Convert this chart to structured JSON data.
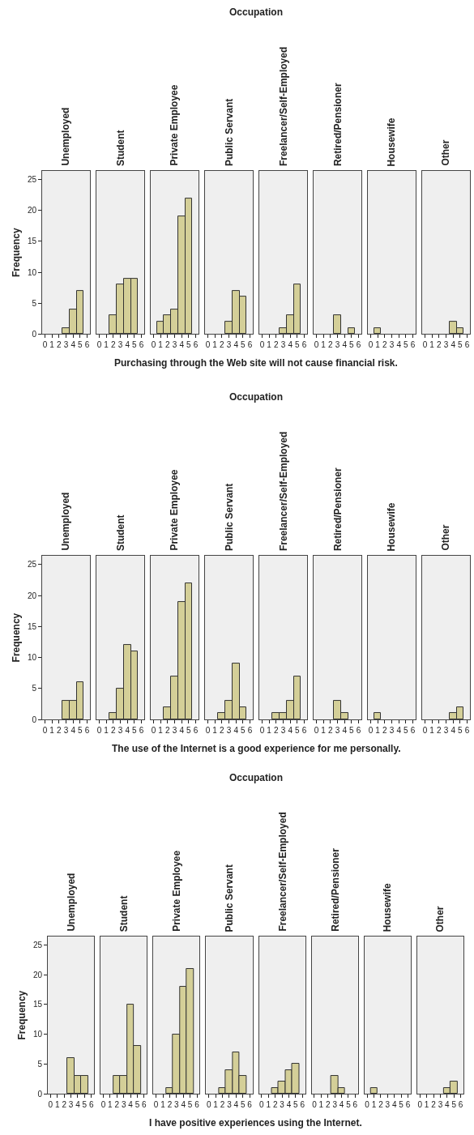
{
  "chart_data": [
    {
      "type": "bar",
      "title": "Unemployed",
      "annotations": [
        "Occupation"
      ],
      "xlabel": "Purchasing through the Web site will not cause financial risk.",
      "ylabel": "Frequency",
      "x": [
        3,
        4,
        5
      ],
      "values": [
        1,
        4,
        7
      ],
      "color": "#d4cf98",
      "xlim": [
        -0.4,
        6.4
      ],
      "xticks": [
        0,
        1,
        2,
        3,
        4,
        5,
        6
      ],
      "ylim": [
        0,
        26.4
      ],
      "yticks": [
        0,
        5,
        10,
        15,
        20,
        25
      ]
    },
    {
      "type": "bar",
      "title": "Student",
      "x": [
        2,
        3,
        4,
        5
      ],
      "values": [
        3,
        8,
        9,
        9
      ],
      "color": "#d4cf98",
      "xlim": [
        -0.4,
        6.4
      ],
      "xticks": [
        0,
        1,
        2,
        3,
        4,
        5,
        6
      ],
      "ylim": [
        0,
        26.4
      ],
      "tick_labels": "x"
    },
    {
      "type": "bar",
      "title": "Private Employee",
      "x": [
        1,
        2,
        3,
        4,
        5
      ],
      "values": [
        2,
        3,
        4,
        19,
        22
      ],
      "color": "#d4cf98",
      "xlim": [
        -0.4,
        6.4
      ],
      "xticks": [
        0,
        1,
        2,
        3,
        4,
        5,
        6
      ],
      "ylim": [
        0,
        26.4
      ],
      "tick_labels": "x"
    },
    {
      "type": "bar",
      "title": "Public Servant",
      "x": [
        3,
        4,
        5
      ],
      "values": [
        2,
        7,
        6
      ],
      "color": "#d4cf98",
      "xlim": [
        -0.4,
        6.4
      ],
      "xticks": [
        0,
        1,
        2,
        3,
        4,
        5,
        6
      ],
      "ylim": [
        0,
        26.4
      ],
      "tick_labels": "x"
    },
    {
      "type": "bar",
      "title": "Freelancer/Self-Employed",
      "x": [
        3,
        4,
        5
      ],
      "values": [
        1,
        3,
        8
      ],
      "color": "#d4cf98",
      "xlim": [
        -0.4,
        6.4
      ],
      "xticks": [
        0,
        1,
        2,
        3,
        4,
        5,
        6
      ],
      "ylim": [
        0,
        26.4
      ],
      "tick_labels": "x"
    },
    {
      "type": "bar",
      "title": "Retired/Pensioner",
      "x": [
        3,
        5
      ],
      "values": [
        3,
        1
      ],
      "color": "#d4cf98",
      "xlim": [
        -0.4,
        6.4
      ],
      "xticks": [
        0,
        1,
        2,
        3,
        4,
        5,
        6
      ],
      "ylim": [
        0,
        26.4
      ],
      "tick_labels": "x"
    },
    {
      "type": "bar",
      "title": "Housewife",
      "x": [
        1
      ],
      "values": [
        1
      ],
      "color": "#d4cf98",
      "xlim": [
        -0.4,
        6.4
      ],
      "xticks": [
        0,
        1,
        2,
        3,
        4,
        5,
        6
      ],
      "ylim": [
        0,
        26.4
      ],
      "tick_labels": "x"
    },
    {
      "type": "bar",
      "title": "Other",
      "x": [
        4,
        5
      ],
      "values": [
        2,
        1
      ],
      "color": "#d4cf98",
      "xlim": [
        -0.4,
        6.4
      ],
      "xticks": [
        0,
        1,
        2,
        3,
        4,
        5,
        6
      ],
      "ylim": [
        0,
        26.4
      ],
      "tick_labels": "x"
    },
    {
      "type": "bar",
      "title": "Unemployed",
      "annotations": [
        "Occupation"
      ],
      "xlabel": "The use of the Internet is a good experience for me personally.",
      "ylabel": "Frequency",
      "x": [
        3,
        4,
        5
      ],
      "values": [
        3,
        3,
        6
      ],
      "color": "#d4cf98",
      "xlim": [
        -0.4,
        6.4
      ],
      "xticks": [
        0,
        1,
        2,
        3,
        4,
        5,
        6
      ],
      "ylim": [
        0,
        26.4
      ],
      "yticks": [
        0,
        5,
        10,
        15,
        20,
        25
      ]
    },
    {
      "type": "bar",
      "title": "Student",
      "x": [
        2,
        3,
        4,
        5
      ],
      "values": [
        1,
        5,
        12,
        11
      ],
      "color": "#d4cf98",
      "xlim": [
        -0.4,
        6.4
      ],
      "xticks": [
        0,
        1,
        2,
        3,
        4,
        5,
        6
      ],
      "ylim": [
        0,
        26.4
      ],
      "tick_labels": "x"
    },
    {
      "type": "bar",
      "title": "Private Employee",
      "x": [
        2,
        3,
        4,
        5
      ],
      "values": [
        2,
        7,
        19,
        22
      ],
      "color": "#d4cf98",
      "xlim": [
        -0.4,
        6.4
      ],
      "xticks": [
        0,
        1,
        2,
        3,
        4,
        5,
        6
      ],
      "ylim": [
        0,
        26.4
      ],
      "tick_labels": "x"
    },
    {
      "type": "bar",
      "title": "Public Servant",
      "x": [
        2,
        3,
        4,
        5
      ],
      "values": [
        1,
        3,
        9,
        2
      ],
      "color": "#d4cf98",
      "xlim": [
        -0.4,
        6.4
      ],
      "xticks": [
        0,
        1,
        2,
        3,
        4,
        5,
        6
      ],
      "ylim": [
        0,
        26.4
      ],
      "tick_labels": "x"
    },
    {
      "type": "bar",
      "title": "Freelancer/Self-Employed",
      "x": [
        2,
        3,
        4,
        5
      ],
      "values": [
        1,
        1,
        3,
        7
      ],
      "color": "#d4cf98",
      "xlim": [
        -0.4,
        6.4
      ],
      "xticks": [
        0,
        1,
        2,
        3,
        4,
        5,
        6
      ],
      "ylim": [
        0,
        26.4
      ],
      "tick_labels": "x"
    },
    {
      "type": "bar",
      "title": "Retired/Pensioner",
      "x": [
        3,
        4
      ],
      "values": [
        3,
        1
      ],
      "color": "#d4cf98",
      "xlim": [
        -0.4,
        6.4
      ],
      "xticks": [
        0,
        1,
        2,
        3,
        4,
        5,
        6
      ],
      "ylim": [
        0,
        26.4
      ],
      "tick_labels": "x"
    },
    {
      "type": "bar",
      "title": "Housewife",
      "x": [
        1
      ],
      "values": [
        1
      ],
      "color": "#d4cf98",
      "xlim": [
        -0.4,
        6.4
      ],
      "xticks": [
        0,
        1,
        2,
        3,
        4,
        5,
        6
      ],
      "ylim": [
        0,
        26.4
      ],
      "tick_labels": "x"
    },
    {
      "type": "bar",
      "title": "Other",
      "x": [
        4,
        5
      ],
      "values": [
        1,
        2
      ],
      "color": "#d4cf98",
      "xlim": [
        -0.4,
        6.4
      ],
      "xticks": [
        0,
        1,
        2,
        3,
        4,
        5,
        6
      ],
      "ylim": [
        0,
        26.4
      ],
      "tick_labels": "x"
    },
    {
      "type": "bar",
      "title": "Unemployed",
      "annotations": [
        "Occupation"
      ],
      "xlabel": "I have positive experiences using the Internet.",
      "ylabel": "Frequency",
      "x": [
        3,
        4,
        5
      ],
      "values": [
        6,
        3,
        3
      ],
      "color": "#d4cf98",
      "xlim": [
        -0.4,
        6.4
      ],
      "xticks": [
        0,
        1,
        2,
        3,
        4,
        5,
        6
      ],
      "ylim": [
        0,
        26.4
      ],
      "yticks": [
        0,
        5,
        10,
        15,
        20,
        25
      ]
    },
    {
      "type": "bar",
      "title": "Student",
      "x": [
        2,
        3,
        4,
        5
      ],
      "values": [
        3,
        3,
        15,
        8
      ],
      "color": "#d4cf98",
      "xlim": [
        -0.4,
        6.4
      ],
      "xticks": [
        0,
        1,
        2,
        3,
        4,
        5,
        6
      ],
      "ylim": [
        0,
        26.4
      ],
      "tick_labels": "x"
    },
    {
      "type": "bar",
      "title": "Private Employee",
      "x": [
        2,
        3,
        4,
        5
      ],
      "values": [
        1,
        10,
        18,
        21
      ],
      "color": "#d4cf98",
      "xlim": [
        -0.4,
        6.4
      ],
      "xticks": [
        0,
        1,
        2,
        3,
        4,
        5,
        6
      ],
      "ylim": [
        0,
        26.4
      ],
      "tick_labels": "x"
    },
    {
      "type": "bar",
      "title": "Public Servant",
      "x": [
        2,
        3,
        4,
        5
      ],
      "values": [
        1,
        4,
        7,
        3
      ],
      "color": "#d4cf98",
      "xlim": [
        -0.4,
        6.4
      ],
      "xticks": [
        0,
        1,
        2,
        3,
        4,
        5,
        6
      ],
      "ylim": [
        0,
        26.4
      ],
      "tick_labels": "x"
    },
    {
      "type": "bar",
      "title": "Freelancer/Self-Employed",
      "x": [
        2,
        3,
        4,
        5
      ],
      "values": [
        1,
        2,
        4,
        5
      ],
      "color": "#d4cf98",
      "xlim": [
        -0.4,
        6.4
      ],
      "xticks": [
        0,
        1,
        2,
        3,
        4,
        5,
        6
      ],
      "ylim": [
        0,
        26.4
      ],
      "tick_labels": "x"
    },
    {
      "type": "bar",
      "title": "Retired/Pensioner",
      "x": [
        3,
        4
      ],
      "values": [
        3,
        1
      ],
      "color": "#d4cf98",
      "xlim": [
        -0.4,
        6.4
      ],
      "xticks": [
        0,
        1,
        2,
        3,
        4,
        5,
        6
      ],
      "ylim": [
        0,
        26.4
      ],
      "tick_labels": "x"
    },
    {
      "type": "bar",
      "title": "Housewife",
      "x": [
        1
      ],
      "values": [
        1
      ],
      "color": "#d4cf98",
      "xlim": [
        -0.4,
        6.4
      ],
      "xticks": [
        0,
        1,
        2,
        3,
        4,
        5,
        6
      ],
      "ylim": [
        0,
        26.4
      ],
      "tick_labels": "x"
    },
    {
      "type": "bar",
      "title": "Other",
      "x": [
        4,
        5
      ],
      "values": [
        1,
        2
      ],
      "color": "#d4cf98",
      "xlim": [
        -0.4,
        6.4
      ],
      "xticks": [
        0,
        1,
        2,
        3,
        4,
        5,
        6
      ],
      "ylim": [
        0,
        26.4
      ],
      "tick_labels": "x"
    }
  ]
}
